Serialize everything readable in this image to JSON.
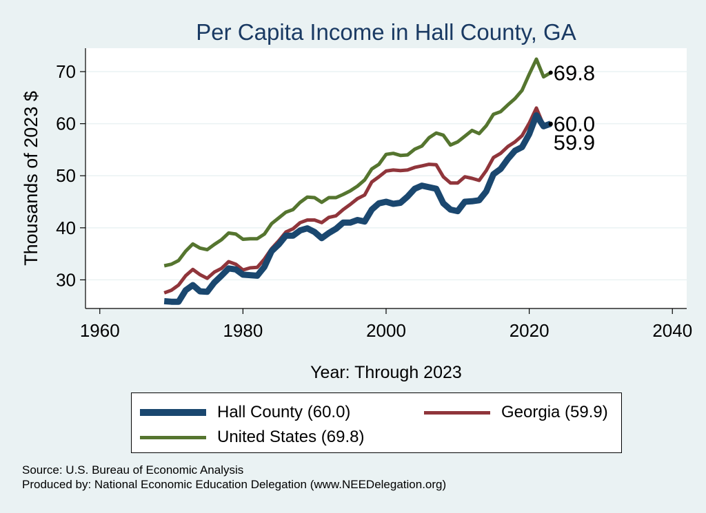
{
  "chart_data": {
    "type": "line",
    "title": "Per Capita Income in Hall County, GA",
    "xlabel": "Year: Through 2023",
    "ylabel": "Thousands of 2023 $",
    "xlim": [
      1958,
      2042
    ],
    "ylim": [
      24.5,
      74.5
    ],
    "xticks": [
      1960,
      1980,
      2000,
      2020,
      2040
    ],
    "yticks": [
      30,
      40,
      50,
      60,
      70
    ],
    "x": [
      1969,
      1970,
      1971,
      1972,
      1973,
      1974,
      1975,
      1976,
      1977,
      1978,
      1979,
      1980,
      1981,
      1982,
      1983,
      1984,
      1985,
      1986,
      1987,
      1988,
      1989,
      1990,
      1991,
      1992,
      1993,
      1994,
      1995,
      1996,
      1997,
      1998,
      1999,
      2000,
      2001,
      2002,
      2003,
      2004,
      2005,
      2006,
      2007,
      2008,
      2009,
      2010,
      2011,
      2012,
      2013,
      2014,
      2015,
      2016,
      2017,
      2018,
      2019,
      2020,
      2021,
      2022,
      2023
    ],
    "series": [
      {
        "name": "Hall County",
        "legend_label": "Hall County (60.0)",
        "color": "#1a476f",
        "end_label": "60.0",
        "values": [
          25.9,
          25.8,
          25.8,
          28.0,
          29.0,
          27.8,
          27.7,
          29.5,
          30.8,
          32.2,
          32.0,
          31.0,
          30.9,
          30.8,
          32.5,
          35.5,
          36.8,
          38.5,
          38.5,
          39.5,
          39.9,
          39.2,
          38.0,
          39.0,
          39.8,
          41.0,
          41.0,
          41.5,
          41.2,
          43.5,
          44.7,
          45.0,
          44.6,
          44.8,
          46.0,
          47.5,
          48.1,
          47.8,
          47.5,
          44.7,
          43.5,
          43.2,
          45.0,
          45.1,
          45.3,
          47.0,
          50.3,
          51.3,
          53.2,
          54.8,
          55.5,
          58.0,
          61.6,
          59.5,
          60.0
        ]
      },
      {
        "name": "Georgia",
        "legend_label": "Georgia (59.9)",
        "color": "#90353b",
        "end_label": "59.9",
        "values": [
          27.5,
          28.0,
          29.0,
          30.8,
          32.0,
          31.0,
          30.3,
          31.5,
          32.2,
          33.5,
          33.0,
          31.9,
          32.3,
          32.4,
          34.0,
          36.0,
          37.5,
          39.2,
          39.8,
          41.0,
          41.5,
          41.5,
          41.0,
          42.0,
          42.3,
          43.5,
          44.5,
          45.6,
          46.3,
          48.8,
          49.8,
          50.9,
          51.1,
          51.0,
          51.1,
          51.6,
          51.9,
          52.2,
          52.1,
          49.8,
          48.6,
          48.6,
          49.8,
          49.5,
          49.1,
          51.0,
          53.5,
          54.3,
          55.6,
          56.5,
          57.7,
          60.1,
          63.0,
          59.7,
          59.9
        ]
      },
      {
        "name": "United States",
        "legend_label": "United States (69.8)",
        "color": "#55752f",
        "end_label": "69.8",
        "values": [
          32.7,
          33.0,
          33.7,
          35.5,
          36.9,
          36.1,
          35.8,
          36.8,
          37.7,
          39.0,
          38.8,
          37.8,
          37.9,
          37.9,
          38.8,
          40.8,
          41.9,
          43.0,
          43.5,
          44.9,
          45.9,
          45.8,
          44.9,
          45.8,
          45.8,
          46.4,
          47.1,
          48.0,
          49.2,
          51.3,
          52.2,
          54.1,
          54.3,
          53.9,
          54.0,
          55.1,
          55.7,
          57.3,
          58.2,
          57.8,
          55.9,
          56.5,
          57.6,
          58.7,
          58.1,
          59.6,
          61.8,
          62.3,
          63.6,
          64.8,
          66.4,
          69.5,
          72.4,
          69.0,
          69.8
        ]
      }
    ],
    "legend_position": "bottom",
    "grid": "horizontal"
  },
  "source_line": "Source: U.S. Bureau of Economic Analysis",
  "produced_line": "Produced by: National Economic Education Delegation (www.NEEDelegation.org)"
}
